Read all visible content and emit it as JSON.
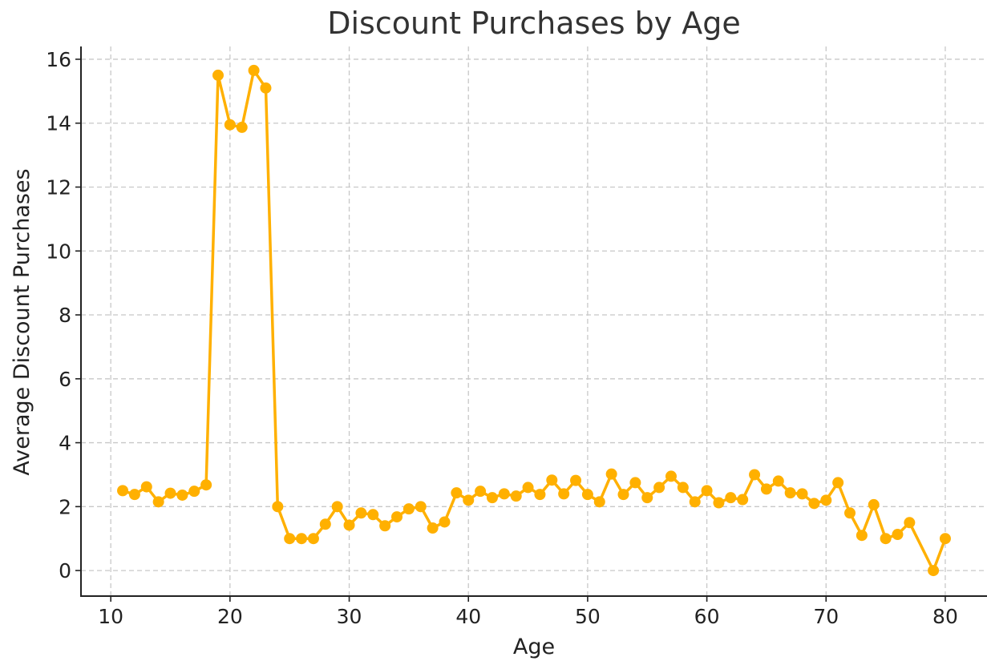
{
  "chart_data": {
    "type": "line",
    "title": "Discount Purchases by Age",
    "xlabel": "Age",
    "ylabel": "Average Discount Purchases",
    "xlim": [
      7.5,
      83.5
    ],
    "ylim": [
      -0.8,
      16.4
    ],
    "xticks": [
      10,
      20,
      30,
      40,
      50,
      60,
      70,
      80
    ],
    "yticks": [
      0,
      2,
      4,
      6,
      8,
      10,
      12,
      14,
      16
    ],
    "grid": true,
    "color": "#FFB000",
    "series": [
      {
        "x": [
          11,
          12,
          13,
          14,
          15,
          16,
          17,
          18,
          19,
          20,
          21,
          22,
          23,
          24,
          25,
          26,
          27,
          28,
          29,
          30,
          31,
          32,
          33,
          34,
          35,
          36,
          37,
          38,
          39,
          40,
          41,
          42,
          43,
          44,
          45,
          46,
          47,
          48,
          49,
          50,
          51,
          52,
          53,
          54,
          55,
          56,
          57,
          58,
          59,
          60,
          61,
          62,
          63,
          64,
          65,
          66,
          67,
          68,
          69,
          70,
          71,
          72,
          73,
          74,
          75,
          76,
          77,
          79,
          80
        ],
        "y": [
          2.5,
          2.38,
          2.62,
          2.15,
          2.42,
          2.36,
          2.48,
          2.68,
          15.5,
          13.95,
          13.87,
          15.65,
          15.1,
          2.0,
          1.0,
          1.0,
          1.0,
          1.45,
          2.0,
          1.42,
          1.8,
          1.75,
          1.4,
          1.68,
          1.93,
          2.0,
          1.33,
          1.52,
          2.43,
          2.2,
          2.48,
          2.28,
          2.4,
          2.33,
          2.6,
          2.38,
          2.83,
          2.4,
          2.82,
          2.38,
          2.15,
          3.02,
          2.38,
          2.75,
          2.28,
          2.6,
          2.95,
          2.6,
          2.15,
          2.5,
          2.12,
          2.28,
          2.22,
          3.0,
          2.55,
          2.8,
          2.43,
          2.4,
          2.1,
          2.2,
          2.75,
          1.8,
          1.1,
          2.06,
          1.0,
          1.13,
          1.5,
          0.0,
          1.0
        ]
      }
    ]
  }
}
